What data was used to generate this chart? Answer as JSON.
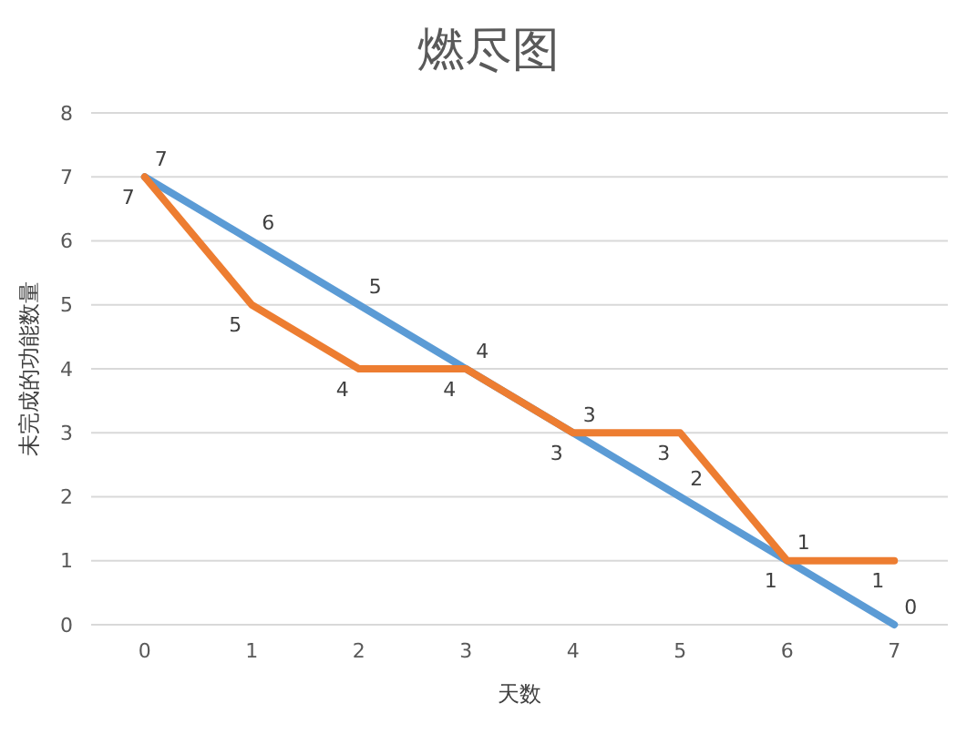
{
  "chart_data": {
    "type": "line",
    "title": "燃尽图",
    "xlabel": "天数",
    "ylabel": "未完成的功能数量",
    "categories": [
      "0",
      "1",
      "2",
      "3",
      "4",
      "5",
      "6",
      "7"
    ],
    "series": [
      {
        "color": "#5b9bd5",
        "values": [
          7,
          6,
          5,
          4,
          3,
          2,
          1,
          0
        ]
      },
      {
        "color": "#ed7d31",
        "values": [
          7,
          5,
          4,
          4,
          3,
          3,
          1,
          1
        ]
      }
    ],
    "ylim": [
      0,
      8
    ],
    "yticks": [
      0,
      1,
      2,
      3,
      4,
      5,
      6,
      7,
      8
    ],
    "grid": "y",
    "data_labels": true,
    "legend": false
  }
}
